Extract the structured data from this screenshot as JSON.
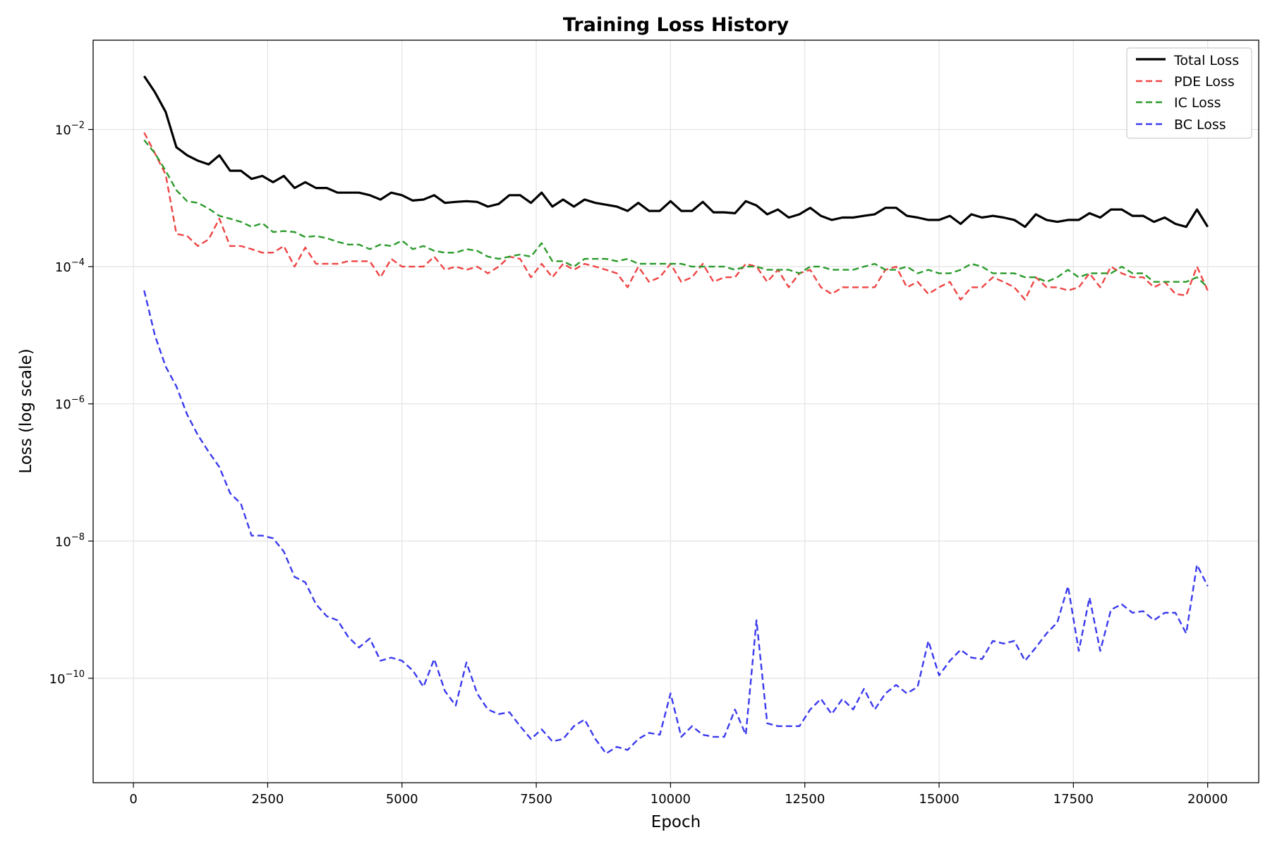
{
  "chart_data": {
    "type": "line",
    "title": "Training Loss History",
    "xlabel": "Epoch",
    "ylabel": "Loss (log scale)",
    "yscale": "log",
    "xlim": [
      -750,
      20950
    ],
    "ylim": [
      3e-12,
      0.2
    ],
    "x_ticks": [
      0,
      2500,
      5000,
      7500,
      10000,
      12500,
      15000,
      17500,
      20000
    ],
    "x_tick_labels": [
      "0",
      "2500",
      "5000",
      "7500",
      "10000",
      "12500",
      "15000",
      "17500",
      "20000"
    ],
    "y_ticks": [
      0.01,
      0.0001,
      1e-06,
      1e-08,
      1e-10
    ],
    "y_tick_labels": [
      {
        "base": "10",
        "exp": "−2"
      },
      {
        "base": "10",
        "exp": "−4"
      },
      {
        "base": "10",
        "exp": "−6"
      },
      {
        "base": "10",
        "exp": "−8"
      },
      {
        "base": "10",
        "exp": "−10"
      }
    ],
    "grid": true,
    "legend_position": "top-right",
    "x": [
      200,
      400,
      600,
      800,
      1000,
      1200,
      1400,
      1600,
      1800,
      2000,
      2200,
      2400,
      2600,
      2800,
      3000,
      3200,
      3400,
      3600,
      3800,
      4000,
      4200,
      4400,
      4600,
      4800,
      5000,
      5200,
      5400,
      5600,
      5800,
      6000,
      6200,
      6400,
      6600,
      6800,
      7000,
      7200,
      7400,
      7600,
      7800,
      8000,
      8200,
      8400,
      8600,
      8800,
      9000,
      9200,
      9400,
      9600,
      9800,
      10000,
      10200,
      10400,
      10600,
      10800,
      11000,
      11200,
      11400,
      11600,
      11800,
      12000,
      12200,
      12400,
      12600,
      12800,
      13000,
      13200,
      13400,
      13600,
      13800,
      14000,
      14200,
      14400,
      14600,
      14800,
      15000,
      15200,
      15400,
      15600,
      15800,
      16000,
      16200,
      16400,
      16600,
      16800,
      17000,
      17200,
      17400,
      17600,
      17800,
      18000,
      18200,
      18400,
      18600,
      18800,
      19000,
      19200,
      19400,
      19600,
      19800,
      20000
    ],
    "series": [
      {
        "name": "Total Loss",
        "color": "#000000",
        "dashed": false,
        "values": [
          0.06,
          0.035,
          0.018,
          0.0055,
          0.0042,
          0.0035,
          0.0031,
          0.0042,
          0.0025,
          0.0025,
          0.0019,
          0.0021,
          0.0017,
          0.0021,
          0.0014,
          0.0017,
          0.0014,
          0.0014,
          0.0012,
          0.0012,
          0.0012,
          0.0011,
          0.00095,
          0.0012,
          0.0011,
          0.00092,
          0.00095,
          0.0011,
          0.00085,
          0.00088,
          0.0009,
          0.00088,
          0.00075,
          0.00082,
          0.0011,
          0.0011,
          0.00085,
          0.0012,
          0.00075,
          0.00095,
          0.00075,
          0.00095,
          0.00085,
          0.0008,
          0.00075,
          0.00065,
          0.00085,
          0.00065,
          0.00065,
          0.0009,
          0.00065,
          0.00065,
          0.00088,
          0.00062,
          0.00062,
          0.0006,
          0.0009,
          0.00078,
          0.00058,
          0.00068,
          0.00052,
          0.00058,
          0.00072,
          0.00055,
          0.00048,
          0.00052,
          0.00052,
          0.00055,
          0.00058,
          0.00072,
          0.00072,
          0.00055,
          0.00052,
          0.00048,
          0.00048,
          0.00055,
          0.00042,
          0.00058,
          0.00052,
          0.00055,
          0.00052,
          0.00048,
          0.00038,
          0.00058,
          0.00048,
          0.00045,
          0.00048,
          0.00048,
          0.0006,
          0.00052,
          0.00068,
          0.00068,
          0.00055,
          0.00055,
          0.00045,
          0.00052,
          0.00042,
          0.00038,
          0.00068,
          0.00038
        ]
      },
      {
        "name": "PDE Loss",
        "color": "#ee4444",
        "dashed": true,
        "values": [
          0.009,
          0.0045,
          0.0022,
          0.0003,
          0.00028,
          0.0002,
          0.00025,
          0.0005,
          0.0002,
          0.0002,
          0.00018,
          0.00016,
          0.00016,
          0.0002,
          0.0001,
          0.00019,
          0.00011,
          0.00011,
          0.00011,
          0.00012,
          0.00012,
          0.00012,
          7e-05,
          0.00013,
          0.0001,
          0.0001,
          0.0001,
          0.00014,
          9e-05,
          0.0001,
          9e-05,
          0.0001,
          8e-05,
          0.0001,
          0.00014,
          0.00013,
          7e-05,
          0.00011,
          7e-05,
          0.00011,
          9e-05,
          0.00011,
          0.0001,
          9e-05,
          8e-05,
          5e-05,
          0.0001,
          6e-05,
          7e-05,
          0.00011,
          6e-05,
          7e-05,
          0.00011,
          6e-05,
          7e-05,
          7e-05,
          0.00011,
          0.0001,
          6e-05,
          9e-05,
          5e-05,
          8e-05,
          9e-05,
          5e-05,
          4e-05,
          5e-05,
          5e-05,
          5e-05,
          5e-05,
          9e-05,
          0.0001,
          5e-05,
          6e-05,
          4e-05,
          5e-05,
          6e-05,
          3.3e-05,
          5e-05,
          5e-05,
          7e-05,
          6e-05,
          5e-05,
          3.3e-05,
          7e-05,
          5e-05,
          5e-05,
          4.5e-05,
          5e-05,
          8e-05,
          5e-05,
          0.0001,
          8e-05,
          7e-05,
          7e-05,
          5e-05,
          6e-05,
          4e-05,
          3.8e-05,
          0.0001,
          4.5e-05
        ]
      },
      {
        "name": "IC Loss",
        "color": "#2a9a2a",
        "dashed": true,
        "values": [
          0.007,
          0.0045,
          0.0025,
          0.0013,
          0.0009,
          0.00085,
          0.0007,
          0.00055,
          0.0005,
          0.00045,
          0.00038,
          0.00043,
          0.00032,
          0.00033,
          0.00032,
          0.00027,
          0.00028,
          0.00026,
          0.00023,
          0.00021,
          0.00021,
          0.00018,
          0.00021,
          0.0002,
          0.00024,
          0.00018,
          0.0002,
          0.00017,
          0.00016,
          0.00016,
          0.00018,
          0.00017,
          0.00014,
          0.00013,
          0.00014,
          0.00015,
          0.00014,
          0.00022,
          0.00012,
          0.00012,
          0.0001,
          0.00013,
          0.00013,
          0.00013,
          0.00012,
          0.00013,
          0.00011,
          0.00011,
          0.00011,
          0.00011,
          0.00011,
          0.0001,
          0.0001,
          0.0001,
          0.0001,
          9e-05,
          0.0001,
          0.0001,
          9e-05,
          9e-05,
          9e-05,
          8e-05,
          0.0001,
          0.0001,
          9e-05,
          9e-05,
          9e-05,
          0.0001,
          0.00011,
          9e-05,
          9e-05,
          0.0001,
          8e-05,
          9e-05,
          8e-05,
          8e-05,
          9e-05,
          0.00011,
          0.0001,
          8e-05,
          8e-05,
          8e-05,
          7e-05,
          7e-05,
          6e-05,
          7e-05,
          9e-05,
          7e-05,
          8e-05,
          8e-05,
          8e-05,
          0.0001,
          8e-05,
          8e-05,
          6e-05,
          6e-05,
          6e-05,
          6e-05,
          7e-05,
          5e-05
        ]
      },
      {
        "name": "BC Loss",
        "color": "#3a3aee",
        "dashed": true,
        "values": [
          4.5e-05,
          1e-05,
          3.5e-06,
          1.8e-06,
          7e-07,
          3.5e-07,
          2e-07,
          1.2e-07,
          5e-08,
          3.5e-08,
          1.2e-08,
          1.2e-08,
          1.1e-08,
          7e-09,
          3e-09,
          2.5e-09,
          1.2e-09,
          8e-10,
          7e-10,
          4e-10,
          2.8e-10,
          3.8e-10,
          1.8e-10,
          2e-10,
          1.8e-10,
          1.3e-10,
          7.5e-11,
          1.9e-10,
          6.5e-11,
          4e-11,
          1.7e-10,
          6e-11,
          3.5e-11,
          3e-11,
          3.2e-11,
          2e-11,
          1.3e-11,
          1.8e-11,
          1.2e-11,
          1.3e-11,
          2e-11,
          2.5e-11,
          1.3e-11,
          8e-12,
          1e-11,
          9e-12,
          1.3e-11,
          1.6e-11,
          1.5e-11,
          6e-11,
          1.4e-11,
          2e-11,
          1.5e-11,
          1.4e-11,
          1.4e-11,
          3.5e-11,
          1.5e-11,
          7e-10,
          2.2e-11,
          2e-11,
          2e-11,
          2e-11,
          3.5e-11,
          5e-11,
          3e-11,
          5e-11,
          3.5e-11,
          7e-11,
          3.5e-11,
          6e-11,
          8e-11,
          6e-11,
          7.5e-11,
          3.5e-10,
          1.1e-10,
          1.8e-10,
          2.6e-10,
          2e-10,
          1.9e-10,
          3.5e-10,
          3.2e-10,
          3.5e-10,
          1.8e-10,
          2.8e-10,
          4.5e-10,
          6.5e-10,
          2.2e-09,
          2.5e-10,
          1.5e-09,
          2.5e-10,
          1e-09,
          1.2e-09,
          9e-10,
          9.5e-10,
          7e-10,
          9e-10,
          9e-10,
          4.5e-10,
          4.5e-09,
          2.2e-09
        ]
      }
    ]
  }
}
